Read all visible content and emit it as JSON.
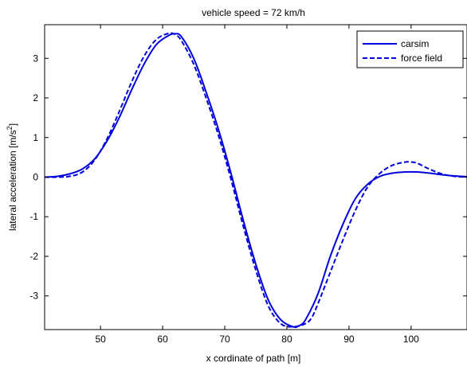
{
  "chart_data": {
    "type": "line",
    "title": "vehicle speed = 72 km/h",
    "xlabel": "x cordinate of path [m]",
    "ylabel_prefix": "lateral acceleration [m/s",
    "ylabel_sup": "2",
    "ylabel_suffix": "]",
    "xlim": [
      41,
      109
    ],
    "ylim": [
      -3.85,
      3.85
    ],
    "xticks": [
      50,
      60,
      70,
      80,
      90,
      100
    ],
    "yticks": [
      -3,
      -2,
      -1,
      0,
      1,
      2,
      3
    ],
    "grid": false,
    "legend_position": "top-right",
    "colors": {
      "line": "#0000dd",
      "axes": "#000000",
      "background": "#ffffff"
    },
    "series": [
      {
        "name": "carsim",
        "style": "solid",
        "x": [
          41,
          43,
          45,
          47,
          49,
          51,
          53,
          55,
          57,
          59,
          61,
          62,
          63,
          65,
          67,
          69,
          71,
          73,
          75,
          77,
          79,
          81,
          82,
          83,
          85,
          87,
          89,
          91,
          93,
          95,
          97,
          99,
          101,
          103,
          105,
          107,
          109
        ],
        "y": [
          0,
          0.02,
          0.08,
          0.2,
          0.45,
          0.9,
          1.5,
          2.2,
          2.85,
          3.35,
          3.58,
          3.62,
          3.55,
          3.0,
          2.15,
          1.2,
          0.1,
          -1.1,
          -2.2,
          -3.1,
          -3.6,
          -3.78,
          -3.75,
          -3.6,
          -2.95,
          -2.0,
          -1.2,
          -0.55,
          -0.18,
          0.02,
          0.1,
          0.13,
          0.13,
          0.1,
          0.06,
          0.03,
          0.01
        ]
      },
      {
        "name": "force field",
        "style": "dashed",
        "x": [
          41,
          43,
          45,
          47,
          49,
          51,
          53,
          55,
          57,
          59,
          61,
          62,
          63,
          65,
          67,
          69,
          71,
          73,
          75,
          77,
          79,
          81,
          83,
          84,
          85,
          87,
          89,
          91,
          93,
          95,
          97,
          99,
          100,
          101,
          103,
          105,
          107,
          109
        ],
        "y": [
          0,
          0,
          0.02,
          0.12,
          0.42,
          0.95,
          1.65,
          2.4,
          3.05,
          3.48,
          3.63,
          3.6,
          3.45,
          2.85,
          2.0,
          1.05,
          -0.05,
          -1.25,
          -2.35,
          -3.25,
          -3.7,
          -3.78,
          -3.7,
          -3.55,
          -3.2,
          -2.4,
          -1.6,
          -0.85,
          -0.25,
          0.1,
          0.3,
          0.38,
          0.38,
          0.35,
          0.2,
          0.08,
          0.02,
          0
        ]
      }
    ]
  }
}
